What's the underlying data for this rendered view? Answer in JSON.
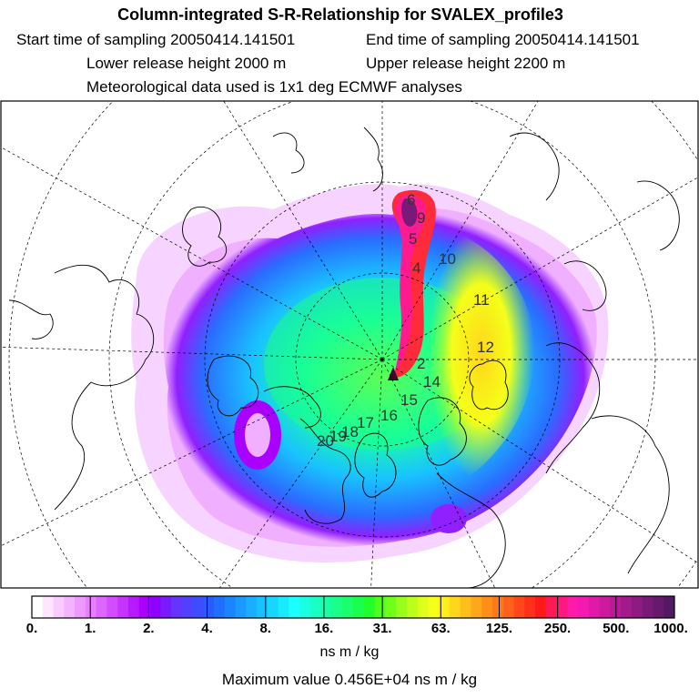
{
  "header": {
    "title": "Column-integrated S-R-Relationship for SVALEX_profile3",
    "start_label": "Start time of sampling 20050414.141501",
    "end_label": "End time of sampling 20050414.141501",
    "lower_label": "Lower release height 2000 m",
    "upper_label": "Upper release height 2200 m",
    "met_label": "Meteorological data used is 1x1 deg ECMWF analyses"
  },
  "legend": {
    "ticks": [
      "0.",
      "1.",
      "2.",
      "4.",
      "8.",
      "16.",
      "31.",
      "63.",
      "125.",
      "250.",
      "500.",
      "1000."
    ],
    "colors": [
      "#ffffff",
      "#fde6ff",
      "#f9ccff",
      "#f4b3ff",
      "#ee99ff",
      "#e680ff",
      "#dd66ff",
      "#d24dff",
      "#c633ff",
      "#b81aff",
      "#aa00ff",
      "#8f00ff",
      "#7a1aff",
      "#6633ff",
      "#5240ff",
      "#3d4dff",
      "#295cff",
      "#2070ff",
      "#1a85ff",
      "#1a99ff",
      "#19aeff",
      "#18c2ff",
      "#19d6ff",
      "#19ebff",
      "#1affff",
      "#1affe1",
      "#1affc4",
      "#1affa6",
      "#19ff88",
      "#1aff6b",
      "#1aff4d",
      "#20ff2a",
      "#4dff1a",
      "#70ff1a",
      "#99ff1a",
      "#bbff1a",
      "#ddff1a",
      "#f5ff1a",
      "#ffee1a",
      "#ffd61a",
      "#ffbf1a",
      "#ffa71a",
      "#ff8f1a",
      "#ff781a",
      "#ff601a",
      "#ff481a",
      "#ff301a",
      "#ff1a1a",
      "#ff1a55",
      "#ff1a80",
      "#ff1aaa",
      "#f21ab0",
      "#e01aa8",
      "#cc1a9f",
      "#b81a96",
      "#a31a8c",
      "#8f1a82",
      "#7a1a78",
      "#661a6e",
      "#521a62"
    ],
    "units": "ns m / kg"
  },
  "footer": {
    "max_value": "Maximum value  0.456E+04 ns m / kg"
  },
  "map": {
    "track_labels": [
      "6",
      "9",
      "5",
      "4",
      "10",
      "11",
      "12",
      "2",
      "14",
      "15",
      "16",
      "17",
      "18",
      "19",
      "20"
    ]
  }
}
